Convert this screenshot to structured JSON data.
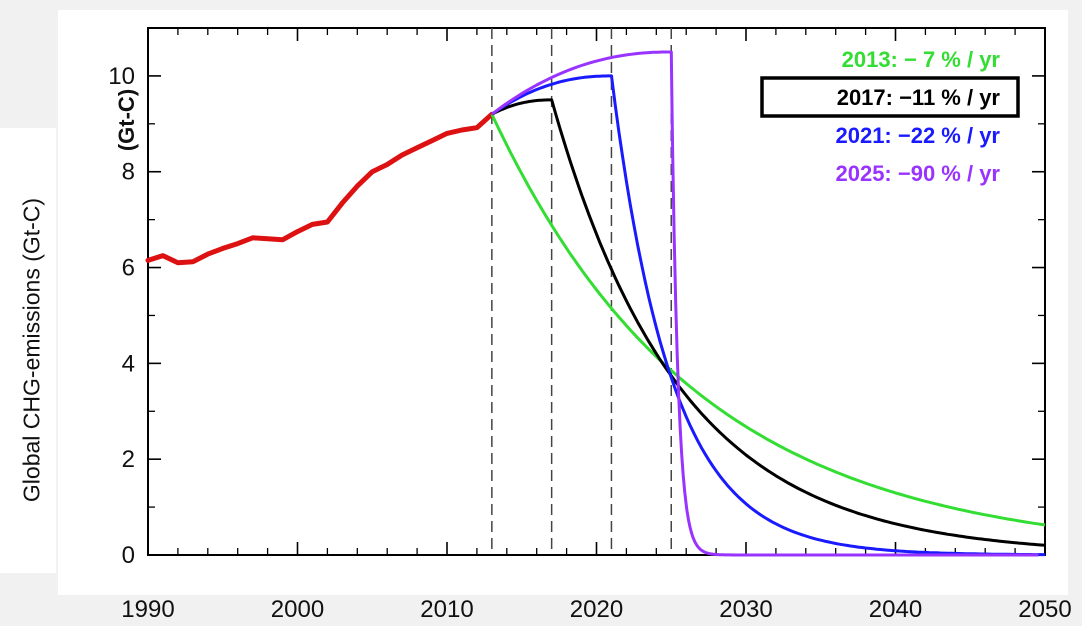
{
  "chart_data": {
    "type": "line",
    "xlabel": "",
    "ylabel": "Global CHG-emissions (Gt-C)",
    "ylabel_behind_fragment": "(Gt-C)",
    "xlim": [
      1990,
      2050
    ],
    "ylim": [
      0,
      11
    ],
    "xticks": [
      1990,
      2000,
      2010,
      2020,
      2030,
      2040,
      2050
    ],
    "yticks": [
      0,
      2,
      4,
      6,
      8,
      10
    ],
    "grid": false,
    "legend_position": "top-right",
    "vlines": [
      2013,
      2017,
      2021,
      2025
    ],
    "historical": {
      "color": "#dd1111",
      "x": [
        1990,
        1991,
        1992,
        1993,
        1994,
        1995,
        1996,
        1997,
        1998,
        1999,
        2000,
        2001,
        2002,
        2003,
        2004,
        2005,
        2006,
        2007,
        2008,
        2009,
        2010,
        2011,
        2012,
        2013
      ],
      "y": [
        6.15,
        6.25,
        6.1,
        6.12,
        6.28,
        6.4,
        6.5,
        6.62,
        6.6,
        6.58,
        6.75,
        6.9,
        6.95,
        7.35,
        7.7,
        8.0,
        8.15,
        8.35,
        8.5,
        8.65,
        8.8,
        8.87,
        8.92,
        9.2
      ]
    },
    "series": [
      {
        "name": "2013: −  7 % / yr",
        "color": "#33dd33",
        "start": 2013,
        "peak_year": 2013,
        "peak": 9.2,
        "rate": 0.07
      },
      {
        "name": "2017: −11 % / yr",
        "color": "#000000",
        "start": 2013,
        "peak_year": 2017,
        "peak": 9.5,
        "rate": 0.11,
        "highlighted": true
      },
      {
        "name": "2021: −22 % / yr",
        "color": "#1a1aff",
        "start": 2013,
        "peak_year": 2021,
        "peak": 10.0,
        "rate": 0.22
      },
      {
        "name": "2025: −90 % / yr",
        "color": "#9933ff",
        "start": 2013,
        "peak_year": 2025,
        "peak": 10.5,
        "rate": 0.9
      }
    ]
  }
}
